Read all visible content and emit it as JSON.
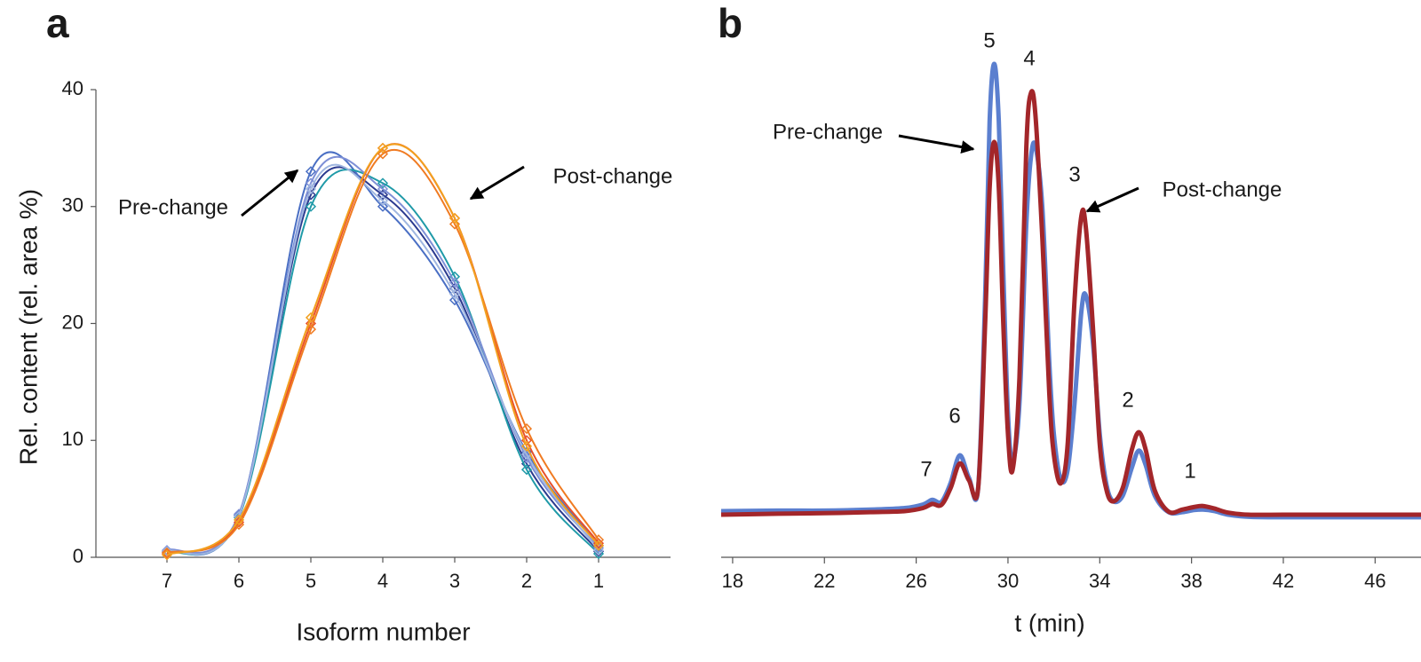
{
  "chart_data": [
    {
      "type": "line",
      "panel_label": "a",
      "xlabel": "Isoform number",
      "ylabel": "Rel. content (rel. area %)",
      "categories": [
        "7",
        "6",
        "5",
        "4",
        "3",
        "2",
        "1"
      ],
      "ylim": [
        0,
        40
      ],
      "yticks": [
        0,
        10,
        20,
        30,
        40
      ],
      "annotations": [
        "Pre-change",
        "Post-change"
      ],
      "series": [
        {
          "color": "#2b3a8f",
          "values": [
            0.5,
            3.5,
            31,
            31,
            23,
            8,
            0.5
          ]
        },
        {
          "color": "#4a6fc4",
          "values": [
            0.5,
            3.6,
            33,
            30,
            22,
            9,
            1
          ]
        },
        {
          "color": "#1f9aa8",
          "values": [
            0.4,
            3.4,
            30,
            32,
            24,
            7.5,
            0.3
          ]
        },
        {
          "color": "#7d8fd6",
          "values": [
            0.6,
            3.7,
            32,
            31.5,
            23.5,
            8.5,
            0.8
          ]
        },
        {
          "color": "#9fb6e0",
          "values": [
            0.5,
            3.5,
            31.5,
            30.5,
            22.5,
            8.8,
            0.6
          ]
        },
        {
          "color": "#e8502a",
          "values": [
            0.3,
            3,
            20,
            35,
            29,
            10,
            1.2
          ]
        },
        {
          "color": "#f07b22",
          "values": [
            0.4,
            2.8,
            19.5,
            34.5,
            28.5,
            11,
            1.5
          ]
        },
        {
          "color": "#f2a01f",
          "values": [
            0.2,
            3.2,
            20.5,
            35,
            29,
            9.5,
            1
          ]
        }
      ]
    },
    {
      "type": "line",
      "panel_label": "b",
      "xlabel": "t (min)",
      "xlim": [
        17.5,
        48
      ],
      "xticks": [
        18,
        22,
        26,
        30,
        34,
        38,
        42,
        46
      ],
      "ylim": [
        0,
        100
      ],
      "annotations": [
        "Pre-change",
        "Post-change"
      ],
      "peak_labels": [
        "7",
        "6",
        "5",
        "4",
        "3",
        "2",
        "1"
      ],
      "x": [
        17.5,
        20,
        22,
        24,
        25.5,
        26.3,
        26.7,
        27.1,
        27.5,
        27.9,
        28.3,
        28.7,
        29.0,
        29.2,
        29.4,
        29.6,
        29.8,
        30.0,
        30.2,
        30.5,
        30.8,
        31.0,
        31.2,
        31.5,
        31.8,
        32.0,
        32.3,
        32.6,
        32.9,
        33.2,
        33.4,
        33.7,
        34.0,
        34.3,
        34.6,
        35.0,
        35.4,
        35.7,
        36.0,
        36.4,
        37.0,
        37.6,
        38.1,
        38.5,
        39.0,
        39.6,
        40.5,
        42,
        44,
        46,
        48
      ],
      "series": [
        {
          "color": "#5b7fcf",
          "values": [
            9.0,
            9.1,
            9.1,
            9.3,
            9.6,
            10.3,
            11.2,
            10.8,
            14.5,
            19.9,
            15.5,
            13.5,
            50,
            85,
            96.2,
            85,
            55,
            28,
            18.7,
            30,
            65,
            78,
            80.1,
            68,
            38,
            24,
            15.2,
            17,
            30,
            48,
            51,
            42,
            24,
            14,
            10.9,
            12,
            17.5,
            20.8,
            18,
            12,
            8.8,
            8.8,
            9.2,
            9.3,
            9.0,
            8.3,
            7.9,
            7.8,
            7.8,
            7.8,
            7.8
          ]
        },
        {
          "color": "#a3262a",
          "values": [
            8.3,
            8.5,
            8.6,
            8.8,
            9.0,
            9.6,
            10.4,
            10.2,
            13.5,
            18.3,
            15,
            13.5,
            45,
            72,
            81,
            72,
            45,
            24,
            17,
            35,
            80,
            90.5,
            86,
            62,
            32,
            20,
            14.4,
            22,
            50,
            66.6,
            64,
            45,
            22,
            13,
            10.9,
            13.5,
            21,
            24.4,
            21,
            13,
            8.9,
            9.3,
            9.8,
            10.0,
            9.5,
            8.7,
            8.3,
            8.3,
            8.3,
            8.3,
            8.3
          ]
        }
      ]
    }
  ]
}
